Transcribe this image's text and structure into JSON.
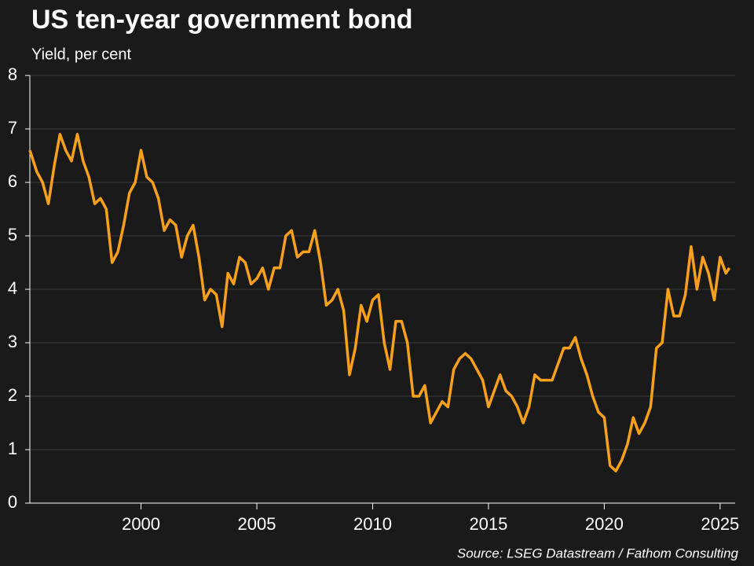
{
  "chart_data": {
    "type": "line",
    "title": "US ten-year government bond",
    "subtitle": "Yield, per cent",
    "source": "Source: LSEG Datastream / Fathom Consulting",
    "x": [
      1995.2,
      1995.5,
      1995.75,
      1996.0,
      1996.25,
      1996.5,
      1996.75,
      1997.0,
      1997.25,
      1997.5,
      1997.75,
      1998.0,
      1998.25,
      1998.5,
      1998.75,
      1999.0,
      1999.25,
      1999.5,
      1999.75,
      2000.0,
      2000.25,
      2000.5,
      2000.75,
      2001.0,
      2001.25,
      2001.5,
      2001.75,
      2002.0,
      2002.25,
      2002.5,
      2002.75,
      2003.0,
      2003.25,
      2003.5,
      2003.75,
      2004.0,
      2004.25,
      2004.5,
      2004.75,
      2005.0,
      2005.25,
      2005.5,
      2005.75,
      2006.0,
      2006.25,
      2006.5,
      2006.75,
      2007.0,
      2007.25,
      2007.5,
      2007.75,
      2008.0,
      2008.25,
      2008.5,
      2008.75,
      2009.0,
      2009.25,
      2009.5,
      2009.75,
      2010.0,
      2010.25,
      2010.5,
      2010.75,
      2011.0,
      2011.25,
      2011.5,
      2011.75,
      2012.0,
      2012.25,
      2012.5,
      2012.75,
      2013.0,
      2013.25,
      2013.5,
      2013.75,
      2014.0,
      2014.25,
      2014.5,
      2014.75,
      2015.0,
      2015.25,
      2015.5,
      2015.75,
      2016.0,
      2016.25,
      2016.5,
      2016.75,
      2017.0,
      2017.25,
      2017.5,
      2017.75,
      2018.0,
      2018.25,
      2018.5,
      2018.75,
      2019.0,
      2019.25,
      2019.5,
      2019.75,
      2020.0,
      2020.25,
      2020.5,
      2020.75,
      2021.0,
      2021.25,
      2021.5,
      2021.75,
      2022.0,
      2022.25,
      2022.5,
      2022.75,
      2023.0,
      2023.25,
      2023.5,
      2023.75,
      2024.0,
      2024.25,
      2024.5,
      2024.75,
      2025.0,
      2025.25,
      2025.4
    ],
    "series": [
      {
        "name": "US ten-year yield",
        "color": "#f7a01c",
        "values": [
          6.6,
          6.2,
          6.0,
          5.6,
          6.3,
          6.9,
          6.6,
          6.4,
          6.9,
          6.4,
          6.1,
          5.6,
          5.7,
          5.5,
          4.5,
          4.7,
          5.2,
          5.8,
          6.0,
          6.6,
          6.1,
          6.0,
          5.7,
          5.1,
          5.3,
          5.2,
          4.6,
          5.0,
          5.2,
          4.6,
          3.8,
          4.0,
          3.9,
          3.3,
          4.3,
          4.1,
          4.6,
          4.5,
          4.1,
          4.2,
          4.4,
          4.0,
          4.4,
          4.4,
          5.0,
          5.1,
          4.6,
          4.7,
          4.7,
          5.1,
          4.5,
          3.7,
          3.8,
          4.0,
          3.6,
          2.4,
          2.9,
          3.7,
          3.4,
          3.8,
          3.9,
          3.0,
          2.5,
          3.4,
          3.4,
          3.0,
          2.0,
          2.0,
          2.2,
          1.5,
          1.7,
          1.9,
          1.8,
          2.5,
          2.7,
          2.8,
          2.7,
          2.5,
          2.3,
          1.8,
          2.1,
          2.4,
          2.1,
          2.0,
          1.8,
          1.5,
          1.8,
          2.4,
          2.3,
          2.3,
          2.3,
          2.6,
          2.9,
          2.9,
          3.1,
          2.7,
          2.4,
          2.0,
          1.7,
          1.6,
          0.7,
          0.6,
          0.8,
          1.1,
          1.6,
          1.3,
          1.5,
          1.8,
          2.9,
          3.0,
          4.0,
          3.5,
          3.5,
          3.9,
          4.8,
          4.0,
          4.6,
          4.3,
          3.8,
          4.6,
          4.3,
          4.4
        ]
      }
    ],
    "xlim": [
      1995.2,
      2025.65
    ],
    "xticks": [
      2000,
      2005,
      2010,
      2015,
      2020,
      2025
    ],
    "ylim": [
      0,
      8
    ],
    "yticks": [
      0,
      1,
      2,
      3,
      4,
      5,
      6,
      7,
      8
    ],
    "grid": true
  }
}
